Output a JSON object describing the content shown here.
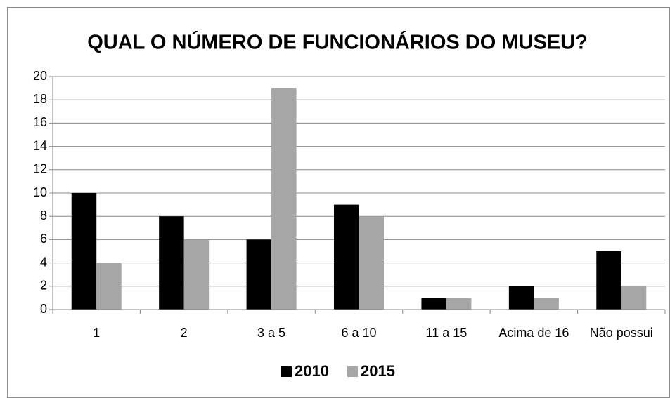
{
  "chart_data": {
    "type": "bar",
    "title": "QUAL O NÚMERO DE FUNCIONÁRIOS DO MUSEU?",
    "categories": [
      "1",
      "2",
      "3 a 5",
      "6 a 10",
      "11 a 15",
      "Acima de 16",
      "Não possui"
    ],
    "series": [
      {
        "name": "2010",
        "color": "#000000",
        "values": [
          10,
          8,
          6,
          9,
          1,
          2,
          5
        ]
      },
      {
        "name": "2015",
        "color": "#a6a6a6",
        "values": [
          4,
          6,
          19,
          8,
          1,
          1,
          2
        ]
      }
    ],
    "ylim": [
      0,
      20
    ],
    "yticks": [
      0,
      2,
      4,
      6,
      8,
      10,
      12,
      14,
      16,
      18,
      20
    ],
    "grid": true,
    "legend": "bottom"
  }
}
